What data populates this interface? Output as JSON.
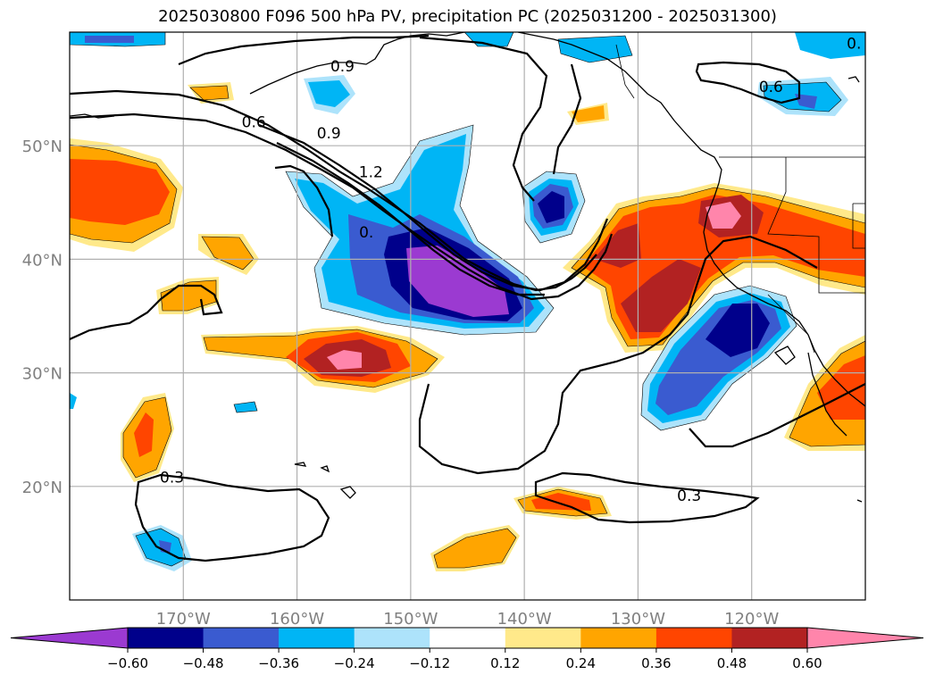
{
  "title": "2025030800 F096 500 hPa PV, precipitation PC (2025031200 - 2025031300)",
  "map": {
    "lon_range": [
      -180,
      -110
    ],
    "lat_range": [
      10,
      60
    ],
    "lon_ticks": [
      {
        "value": -170,
        "label": "170°W"
      },
      {
        "value": -160,
        "label": "160°W"
      },
      {
        "value": -150,
        "label": "150°W"
      },
      {
        "value": -140,
        "label": "140°W"
      },
      {
        "value": -130,
        "label": "130°W"
      },
      {
        "value": -120,
        "label": "120°W"
      }
    ],
    "lat_ticks": [
      {
        "value": 20,
        "label": "20°N"
      },
      {
        "value": 30,
        "label": "30°N"
      },
      {
        "value": 40,
        "label": "40°N"
      },
      {
        "value": 50,
        "label": "50°N"
      }
    ],
    "grid": true,
    "pv_contour_labels": [
      {
        "text": "0.9",
        "lon": -156,
        "lat": 57
      },
      {
        "text": "0.6",
        "lon": -163.8,
        "lat": 52.1
      },
      {
        "text": "0.9",
        "lon": -157.2,
        "lat": 51.1
      },
      {
        "text": "1.2",
        "lon": -153.5,
        "lat": 47.7
      },
      {
        "text": "0.",
        "lon": -153.9,
        "lat": 42.4
      },
      {
        "text": "0.6",
        "lon": -118.3,
        "lat": 55.2
      },
      {
        "text": "0.3",
        "lon": -171,
        "lat": 20.8
      },
      {
        "text": "0.3",
        "lon": -125.5,
        "lat": 19.2
      },
      {
        "text": "0.",
        "lon": -111,
        "lat": 59
      }
    ]
  },
  "colorbar": {
    "levels": [
      -0.6,
      -0.48,
      -0.36,
      -0.24,
      -0.12,
      0.12,
      0.24,
      0.36,
      0.48,
      0.6
    ],
    "tick_labels": [
      "−0.60",
      "−0.48",
      "−0.36",
      "−0.24",
      "−0.12",
      "0.12",
      "0.24",
      "0.36",
      "0.48",
      "0.60"
    ],
    "colors": [
      "#9b3ad1",
      "#00008b",
      "#3a5bd0",
      "#00b5f5",
      "#ade3fb",
      "#ffffff",
      "#ffe98a",
      "#ffa500",
      "#ff4500",
      "#b22222",
      "#ff85ab"
    ]
  }
}
